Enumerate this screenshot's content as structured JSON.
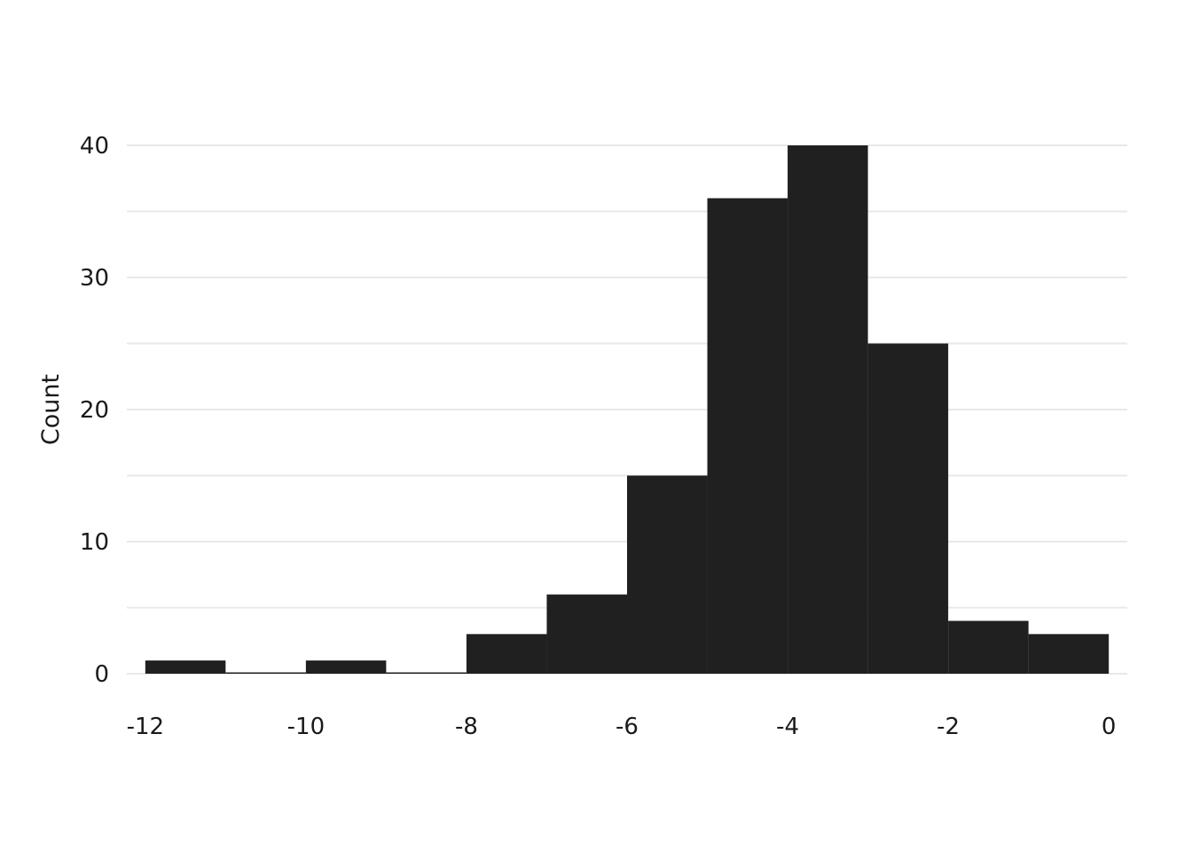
{
  "chart_data": {
    "type": "histogram",
    "title": "",
    "xlabel": "",
    "ylabel": "Count",
    "bins": [
      {
        "x0": -12,
        "x1": -11,
        "count": 1
      },
      {
        "x0": -11,
        "x1": -10,
        "count": 0
      },
      {
        "x0": -10,
        "x1": -9,
        "count": 1
      },
      {
        "x0": -9,
        "x1": -8,
        "count": 0
      },
      {
        "x0": -8,
        "x1": -7,
        "count": 3
      },
      {
        "x0": -7,
        "x1": -6,
        "count": 6
      },
      {
        "x0": -6,
        "x1": -5,
        "count": 15
      },
      {
        "x0": -5,
        "x1": -4,
        "count": 36
      },
      {
        "x0": -4,
        "x1": -3,
        "count": 40
      },
      {
        "x0": -3,
        "x1": -2,
        "count": 25
      },
      {
        "x0": -2,
        "x1": -1,
        "count": 4
      },
      {
        "x0": -1,
        "x1": 0,
        "count": 3
      }
    ],
    "xticks": [
      -12,
      -10,
      -8,
      -6,
      -4,
      -2,
      0
    ],
    "yticks": [
      0,
      10,
      20,
      30,
      40
    ],
    "xlim": [
      -12.23,
      0.23
    ],
    "ylim": [
      0,
      40
    ],
    "grid": {
      "horizontal": true,
      "vertical": false
    },
    "bar_color": "#202020",
    "grid_color": "#e8e8e8",
    "background": "#ffffff"
  }
}
